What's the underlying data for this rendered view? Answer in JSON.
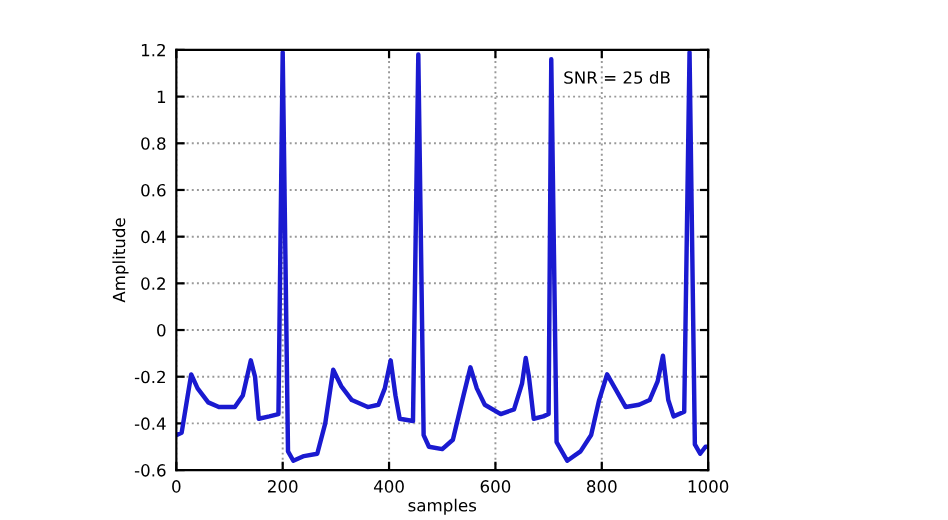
{
  "chart_data": {
    "type": "line",
    "xlabel": "samples",
    "ylabel": "Amplitude",
    "annotations": [
      "SNR = 25 dB"
    ],
    "series": [
      {
        "color": "#1a1ad0",
        "x": [
          0,
          10,
          20,
          28,
          40,
          60,
          80,
          110,
          125,
          140,
          148,
          155,
          175,
          192,
          200,
          210,
          220,
          240,
          265,
          280,
          295,
          310,
          330,
          360,
          380,
          392,
          403,
          412,
          420,
          445,
          455,
          465,
          475,
          500,
          520,
          540,
          553,
          565,
          580,
          610,
          635,
          650,
          657,
          663,
          672,
          690,
          700,
          705,
          715,
          735,
          760,
          780,
          795,
          810,
          825,
          845,
          870,
          890,
          905,
          915,
          925,
          935,
          955,
          965,
          975,
          985,
          995,
          1000
        ],
        "values": [
          -0.45,
          -0.44,
          -0.3,
          -0.19,
          -0.25,
          -0.31,
          -0.33,
          -0.33,
          -0.28,
          -0.13,
          -0.2,
          -0.38,
          -0.37,
          -0.36,
          1.19,
          -0.52,
          -0.56,
          -0.54,
          -0.53,
          -0.4,
          -0.17,
          -0.24,
          -0.3,
          -0.33,
          -0.32,
          -0.25,
          -0.13,
          -0.28,
          -0.38,
          -0.39,
          1.18,
          -0.45,
          -0.5,
          -0.51,
          -0.47,
          -0.28,
          -0.16,
          -0.25,
          -0.32,
          -0.36,
          -0.34,
          -0.23,
          -0.12,
          -0.2,
          -0.38,
          -0.37,
          -0.36,
          1.16,
          -0.48,
          -0.56,
          -0.52,
          -0.45,
          -0.3,
          -0.19,
          -0.25,
          -0.33,
          -0.32,
          -0.3,
          -0.22,
          -0.11,
          -0.3,
          -0.37,
          -0.35,
          1.19,
          -0.49,
          -0.53,
          -0.5,
          -0.5
        ]
      }
    ],
    "xlim": [
      0,
      1000
    ],
    "xticks": [
      0,
      200,
      400,
      600,
      800,
      1000
    ],
    "ylim": [
      -0.6,
      1.2
    ],
    "yticks": [
      -0.6,
      -0.4,
      -0.2,
      0,
      0.2,
      0.4,
      0.6,
      0.8,
      1,
      1.2
    ],
    "grid": true,
    "line_style": "solid",
    "marker": "none"
  }
}
